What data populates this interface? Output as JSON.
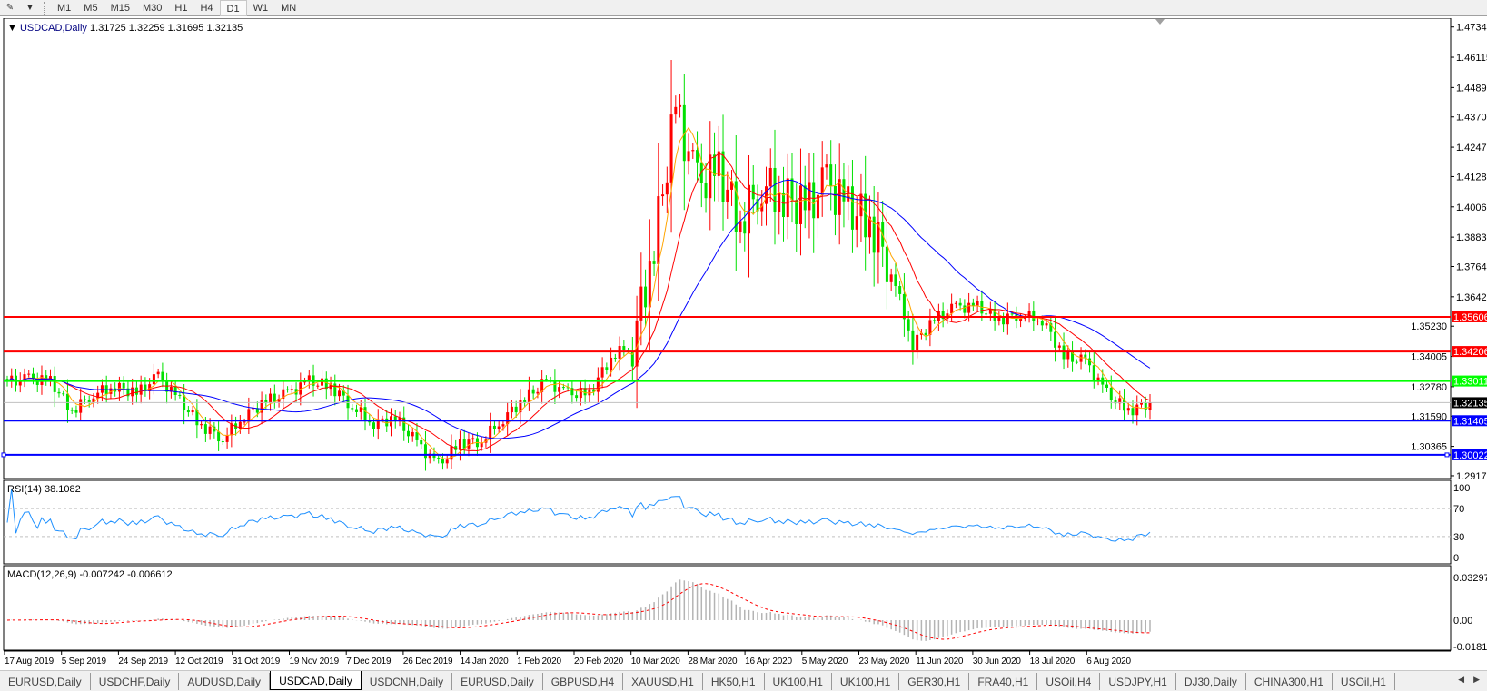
{
  "toolbar": {
    "timeframes": [
      "M1",
      "M5",
      "M15",
      "M30",
      "H1",
      "H4",
      "D1",
      "W1",
      "MN"
    ],
    "active": "D1",
    "draw_icon": "line-tool-icon",
    "dropdown_icon": "caret-down-icon"
  },
  "header": {
    "symbol": "USDCAD,Daily",
    "ohlc": "1.31725 1.32259 1.31695 1.32135"
  },
  "tabs": [
    "EURUSD,Daily",
    "USDCHF,Daily",
    "AUDUSD,Daily",
    "USDCAD,Daily",
    "USDCNH,Daily",
    "EURUSD,Daily",
    "GBPUSD,H4",
    "XAUUSD,H1",
    "HK50,H1",
    "UK100,H1",
    "UK100,H1",
    "GER30,H1",
    "FRA40,H1",
    "USOil,H4",
    "USDJPY,H1",
    "DJ30,Daily",
    "CHINA300,H1",
    "USOil,H1"
  ],
  "active_tab": "USDCAD,Daily",
  "chart_data": {
    "type": "candlestick",
    "title": "USDCAD,Daily",
    "bull_color": "#ff0000",
    "bear_color": "#00e000",
    "price_ticks": [
      "1.47340",
      "1.46115",
      "1.44890",
      "1.43700",
      "1.42475",
      "1.41285",
      "1.40060",
      "1.38835",
      "1.37645",
      "1.36420",
      "1.35230",
      "1.34005",
      "1.32780",
      "1.31590",
      "1.30365",
      "1.29175"
    ],
    "ylim": [
      1.29175,
      1.4734
    ],
    "x_ticks": [
      "17 Aug 2019",
      "5 Sep 2019",
      "24 Sep 2019",
      "12 Oct 2019",
      "31 Oct 2019",
      "19 Nov 2019",
      "7 Dec 2019",
      "26 Dec 2019",
      "14 Jan 2020",
      "1 Feb 2020",
      "20 Feb 2020",
      "10 Mar 2020",
      "28 Mar 2020",
      "16 Apr 2020",
      "5 May 2020",
      "23 May 2020",
      "11 Jun 2020",
      "30 Jun 2020",
      "18 Jul 2020",
      "6 Aug 2020"
    ],
    "weekly_closes": [
      1.33,
      1.331,
      1.33,
      1.318,
      1.325,
      1.328,
      1.325,
      1.332,
      1.322,
      1.312,
      1.307,
      1.316,
      1.322,
      1.325,
      1.33,
      1.328,
      1.32,
      1.313,
      1.315,
      1.305,
      1.296,
      1.305,
      1.306,
      1.315,
      1.323,
      1.33,
      1.325,
      1.325,
      1.34,
      1.345,
      1.385,
      1.44,
      1.41,
      1.415,
      1.395,
      1.41,
      1.405,
      1.4,
      1.41,
      1.4,
      1.395,
      1.375,
      1.345,
      1.355,
      1.36,
      1.36,
      1.355,
      1.357,
      1.355,
      1.34,
      1.338,
      1.325,
      1.318,
      1.32135
    ],
    "moving_averages": [
      {
        "color": "#ffa500"
      },
      {
        "color": "#ff0000"
      },
      {
        "color": "#0000ff"
      }
    ],
    "hlines": [
      {
        "value": "1.35606",
        "color": "#ff0000"
      },
      {
        "value": "1.34206",
        "color": "#ff0000"
      },
      {
        "value": "1.33011",
        "color": "#00ff00"
      },
      {
        "value": "1.32135",
        "color": "#000000",
        "line": "#c0c0c0"
      },
      {
        "value": "1.31405",
        "color": "#0000ff"
      },
      {
        "value": "1.30022",
        "color": "#0000ff"
      }
    ],
    "rsi": {
      "label": "RSI(14) 38.1082",
      "levels": [
        "100",
        "70",
        "30",
        "0"
      ],
      "color": "#1e90ff"
    },
    "macd": {
      "label": "MACD(12,26,9) -0.007242 -0.006612",
      "ticks": [
        "0.032972",
        "0.00",
        "-0.01815"
      ]
    }
  }
}
